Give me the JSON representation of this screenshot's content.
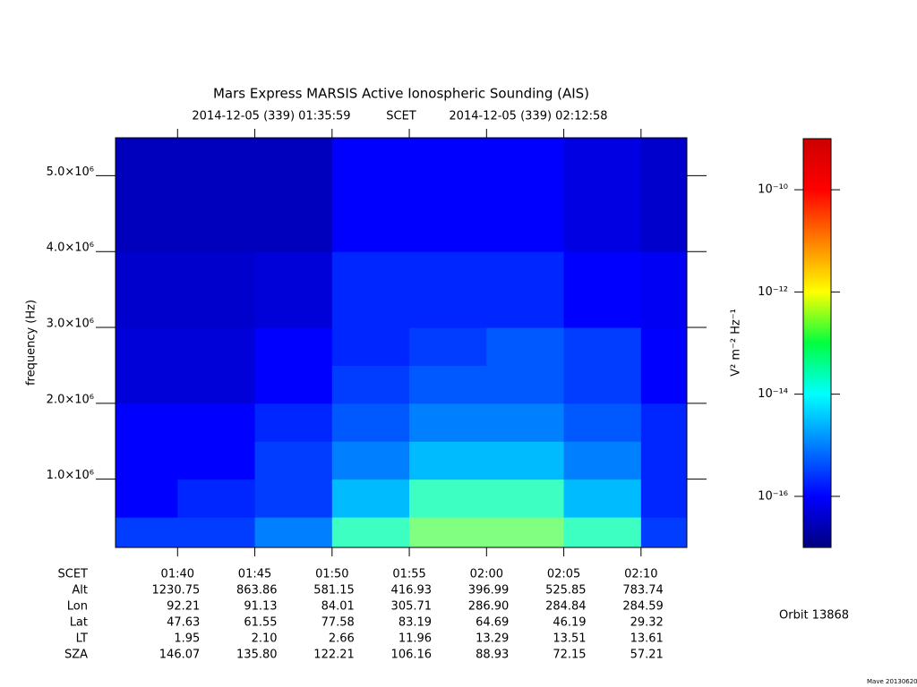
{
  "chart_data": {
    "type": "heatmap",
    "title": "Mars Express MARSIS Active Ionospheric Sounding (AIS)",
    "start_label": "2014-12-05 (339) 01:35:59",
    "time_system": "SCET",
    "end_label": "2014-12-05 (339) 02:12:58",
    "y_label": "frequency (Hz)",
    "xlim": [
      "01:35:59",
      "02:12:58"
    ],
    "xticks": [
      "01:40",
      "01:45",
      "01:50",
      "01:55",
      "02:00",
      "02:05",
      "02:10"
    ],
    "ylim": [
      100000,
      5500000
    ],
    "yticks": [
      {
        "value": 1000000,
        "label": "1.0×10⁶"
      },
      {
        "value": 2000000,
        "label": "2.0×10⁶"
      },
      {
        "value": 3000000,
        "label": "3.0×10⁶"
      },
      {
        "value": 4000000,
        "label": "4.0×10⁶"
      },
      {
        "value": 5000000,
        "label": "5.0×10⁶"
      }
    ],
    "x_bins": [
      "01:35:59",
      "01:40",
      "01:45",
      "01:50",
      "01:55",
      "02:00",
      "02:05",
      "02:10",
      "02:12:58"
    ],
    "y_bins": [
      100000,
      500000,
      1000000,
      1500000,
      2000000,
      2500000,
      3000000,
      4000000,
      5500000
    ],
    "z": [
      [
        3e-16,
        3e-16,
        1e-15,
        3e-14,
        1e-13,
        1e-13,
        3e-14,
        3e-16
      ],
      [
        1e-16,
        2e-16,
        3e-16,
        3e-15,
        3e-14,
        3e-14,
        3e-15,
        2e-16
      ],
      [
        1e-16,
        1e-16,
        3e-16,
        1e-15,
        3e-15,
        3e-15,
        1e-15,
        2e-16
      ],
      [
        1e-16,
        1e-16,
        2e-16,
        5e-16,
        1e-15,
        1e-15,
        5e-16,
        2e-16
      ],
      [
        5e-17,
        5e-17,
        1e-16,
        3e-16,
        5e-16,
        5e-16,
        3e-16,
        1e-16
      ],
      [
        5e-17,
        5e-17,
        1e-16,
        2e-16,
        3e-16,
        5e-16,
        3e-16,
        1e-16
      ],
      [
        4e-17,
        4e-17,
        5e-17,
        2e-16,
        2e-16,
        2e-16,
        1e-16,
        8e-17
      ],
      [
        3e-17,
        3e-17,
        3e-17,
        1e-16,
        1e-16,
        1e-16,
        6e-17,
        4e-17
      ]
    ],
    "colormap": "jet",
    "color_log": true,
    "clim": [
      1e-17,
      1e-09
    ],
    "cticks": [
      {
        "value": 1e-10,
        "label": "10⁻¹⁰"
      },
      {
        "value": 1e-12,
        "label": "10⁻¹²"
      },
      {
        "value": 1e-14,
        "label": "10⁻¹⁴"
      },
      {
        "value": 1e-16,
        "label": "10⁻¹⁶"
      }
    ],
    "colorbar_label": "V² m⁻² Hz⁻¹",
    "table": {
      "time_row_label": "SCET",
      "rows": [
        {
          "label": "Alt",
          "values": [
            "1230.75",
            "863.86",
            "581.15",
            "416.93",
            "396.99",
            "525.85",
            "783.74"
          ]
        },
        {
          "label": "Lon",
          "values": [
            "92.21",
            "91.13",
            "84.01",
            "305.71",
            "286.90",
            "284.84",
            "284.59"
          ]
        },
        {
          "label": "Lat",
          "values": [
            "47.63",
            "61.55",
            "77.58",
            "83.19",
            "64.69",
            "46.19",
            "29.32"
          ]
        },
        {
          "label": "LT",
          "values": [
            "1.95",
            "2.10",
            "2.66",
            "11.96",
            "13.29",
            "13.51",
            "13.61"
          ]
        },
        {
          "label": "SZA",
          "values": [
            "146.07",
            "135.80",
            "122.21",
            "106.16",
            "88.93",
            "72.15",
            "57.21"
          ]
        }
      ]
    },
    "orbit": "Orbit 13868",
    "credit": "Mave 20130620"
  }
}
